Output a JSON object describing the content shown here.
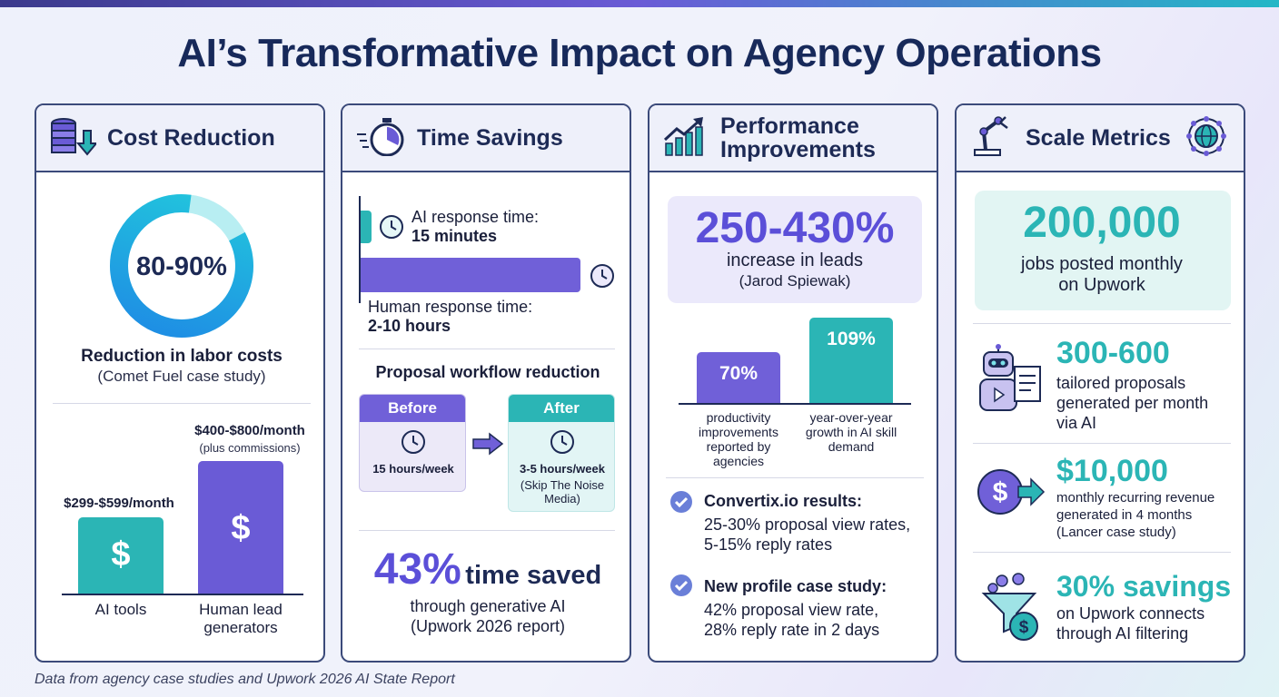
{
  "title": "AI’s Transformative Impact on Agency Operations",
  "colors": {
    "accent": "#6a5bd6",
    "teal": "#2bb5b5",
    "navy": "#1d2a55",
    "cyan": "#22c9dc"
  },
  "cost": {
    "header": "Cost Reduction",
    "donut_value": "80-90%",
    "donut_label": "Reduction in labor costs",
    "donut_source": "(Comet Fuel case study)",
    "ai_price": "$299-$599/month",
    "human_price": "$400-$800/month",
    "human_note": "(plus commissions)",
    "ai_label": "AI tools",
    "human_label": "Human lead generators",
    "dollar": "$"
  },
  "time": {
    "header": "Time Savings",
    "ai_resp_label": "AI response time:",
    "ai_resp_value": "15 minutes",
    "human_resp_label": "Human response time:",
    "human_resp_value": "2-10 hours",
    "workflow_title": "Proposal workflow reduction",
    "before_label": "Before",
    "before_value": "15 hours/week",
    "after_label": "After",
    "after_value": "3-5 hours/week",
    "after_source": "(Skip The Noise Media)",
    "big_number": "43%",
    "big_text": "time saved",
    "sub1": "through generative AI",
    "sub2": "(Upwork 2026 report)"
  },
  "perf": {
    "header": "Performance Improvements",
    "big": "250-430%",
    "big_label": "increase in leads",
    "big_source": "(Jarod Spiewak)",
    "bar1_value": "70%",
    "bar1_label": "productivity improvements reported by agencies",
    "bar2_value": "109%",
    "bar2_label": "year-over-year growth in AI skill demand",
    "c1_title": "Convertix.io results:",
    "c1_line1": "25-30% proposal view rates,",
    "c1_line2": "5-15% reply rates",
    "c2_title": "New profile case study:",
    "c2_line1": "42% proposal view rate,",
    "c2_line2": "28% reply rate in 2 days"
  },
  "scale": {
    "header": "Scale Metrics",
    "big": "200,000",
    "big_l1": "jobs posted monthly",
    "big_l2": "on Upwork",
    "m1_value": "300-600",
    "m1_l1": "tailored proposals",
    "m1_l2": "generated per month",
    "m1_l3": "via AI",
    "m2_value": "$10,000",
    "m2_l1": "monthly recurring revenue",
    "m2_l2": "generated in 4 months",
    "m2_l3": "(Lancer case study)",
    "m3_value": "30% savings",
    "m3_l1": "on Upwork connects",
    "m3_l2": "through AI filtering"
  },
  "footer": "Data from agency case studies and Upwork 2026 AI State Report"
}
